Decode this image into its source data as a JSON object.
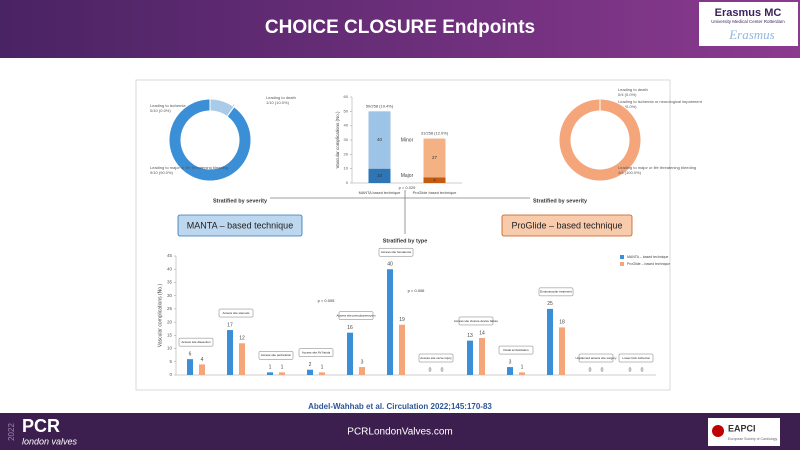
{
  "slide": {
    "title": "CHOICE CLOSURE Endpoints",
    "logo_name": "Erasmus MC",
    "logo_subtitle": "University Medical Center Rotterdam",
    "logo_script": "Erasmus",
    "severity_left": "Stratified by severity",
    "severity_right": "Stratified by severity",
    "group_left": "MANTA – based technique",
    "group_right": "ProGlide – based technique",
    "citation": "Abdel-Wahhab  et al. Circulation  2022;145:170-83",
    "footer_url": "PCRLondonValves.com",
    "pcr": "PCR",
    "pcr_sub": "london valves",
    "pcr_year": "2022",
    "eapci": "EAPCI",
    "eapci_sub": "European Society of Cardiology"
  },
  "chart_data": [
    {
      "type": "pie",
      "donut": true,
      "categories": [
        "Leading to ischemia or neurological impairment",
        "Leading to death",
        "Leading to major or life threatening bleeding"
      ],
      "values": [
        0,
        1,
        9
      ],
      "value_labels": [
        "0/10 (0.0%)",
        "1/10 (10.0%)",
        "9/10 (90.0%)"
      ],
      "colors": [
        "#1f4e79",
        "#a9cbe9",
        "#3b8fd6"
      ]
    },
    {
      "type": "pie",
      "donut": true,
      "categories": [
        "Leading to ischemia or neurological impairment",
        "Leading to death",
        "Leading to major or life threatening bleeding"
      ],
      "values": [
        0,
        0,
        4
      ],
      "value_labels": [
        "0/4 (0.0%)",
        "0/4 (0.0%)",
        "4/4 (100.0%)"
      ],
      "colors": [
        "#c55a11",
        "#fbd3b5",
        "#f4a57a"
      ]
    },
    {
      "type": "bar",
      "stacked": true,
      "categories": [
        "MANTA based technique",
        "ProGlide based technique"
      ],
      "series": [
        {
          "name": "Major",
          "colors": [
            "#2e75b6",
            "#c55a11"
          ],
          "values": [
            10,
            4
          ]
        },
        {
          "name": "Minor",
          "colors": [
            "#9dc3e6",
            "#f4b183"
          ],
          "values": [
            40,
            27
          ]
        }
      ],
      "total_labels": [
        "50/258 (19.4%)",
        "31/258 (12.0%)"
      ],
      "annotation": "p = 0.029",
      "ylabel": "Vascular complications (No.)",
      "ylim": [
        0,
        60
      ],
      "yticks": [
        0,
        10,
        20,
        30,
        40,
        50,
        60
      ]
    },
    {
      "type": "bar",
      "title": "Stratified by type",
      "categories": [
        "Access site dissection",
        "Access site stenosis",
        "Access site perforation",
        "Access site AV fistula",
        "Access site pseudoaneurysm",
        "Access site hematoma",
        "Access site nerve injury",
        "Access site closure device failure",
        "Distal embolization",
        "Endovascular treatment",
        "Unplanned access site surgery",
        "Lower limb ischemia"
      ],
      "series": [
        {
          "name": "MANTA – based technique",
          "color": "#3b8fd6",
          "values": [
            6,
            17,
            1,
            2,
            16,
            40,
            0,
            13,
            3,
            25,
            0,
            0
          ]
        },
        {
          "name": "ProGlide – based technique",
          "color": "#f4a57a",
          "values": [
            4,
            12,
            1,
            1,
            3,
            19,
            0,
            14,
            1,
            18,
            0,
            0
          ]
        }
      ],
      "annotations": [
        "p = 0.005",
        "p = 0.006"
      ],
      "ylabel": "Vascular complications (No.)",
      "ylim": [
        0,
        45
      ],
      "yticks": [
        0,
        5,
        10,
        15,
        20,
        25,
        30,
        35,
        40,
        45
      ],
      "legend": "upper right"
    }
  ]
}
